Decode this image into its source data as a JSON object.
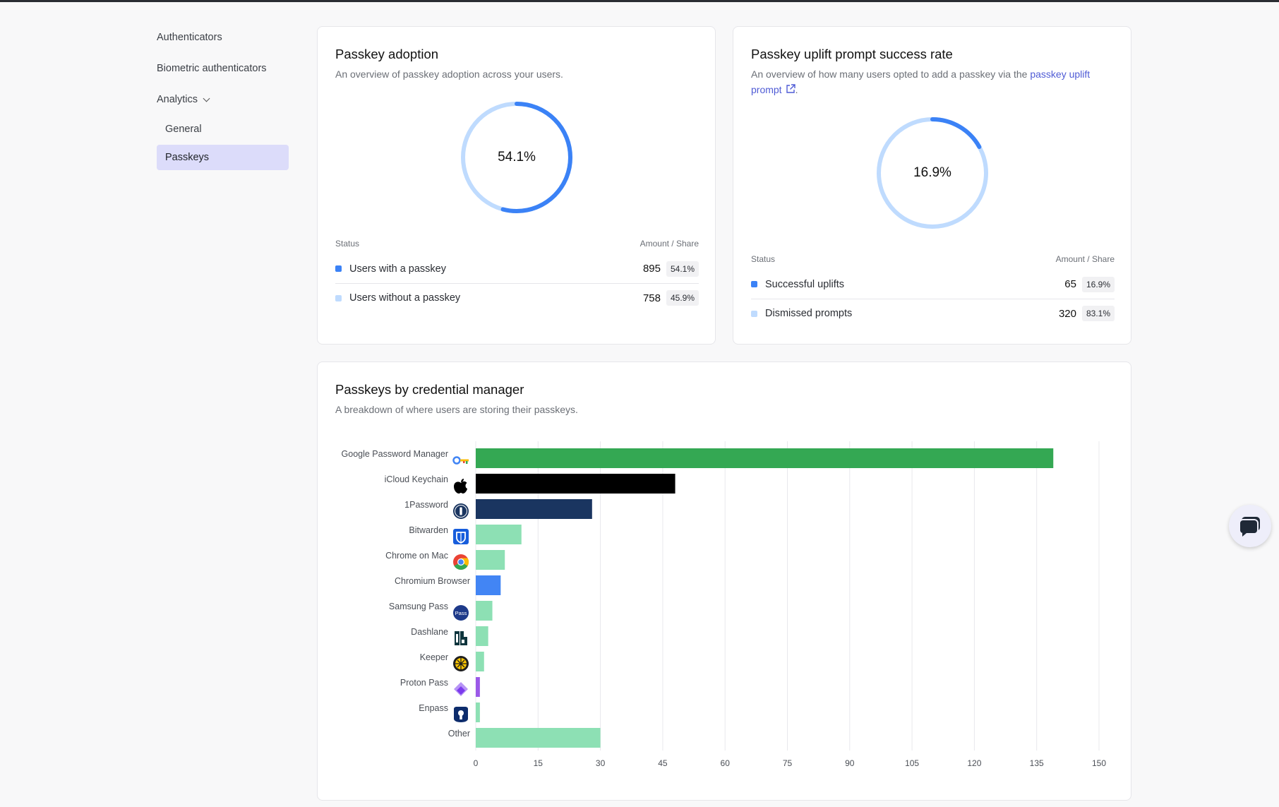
{
  "sidebar": {
    "items": [
      {
        "label": "Authenticators"
      },
      {
        "label": "Biometric authenticators"
      },
      {
        "label": "Analytics"
      }
    ],
    "sub_items": [
      {
        "label": "General"
      },
      {
        "label": "Passkeys"
      }
    ]
  },
  "adoption": {
    "title": "Passkey adoption",
    "subtitle": "An overview of passkey adoption across your users.",
    "percent_label": "54.1%",
    "fraction": 0.541,
    "head_left": "Status",
    "head_right": "Amount / Share",
    "rows": [
      {
        "label": "Users with a passkey",
        "amount": "895",
        "share": "54.1%",
        "color": "#3b82f6"
      },
      {
        "label": "Users without a passkey",
        "amount": "758",
        "share": "45.9%",
        "color": "#bfdbfe"
      }
    ]
  },
  "uplift": {
    "title": "Passkey uplift prompt success rate",
    "subtitle_prefix": "An overview of how many users opted to add a passkey via the",
    "link_text": "passkey uplift prompt",
    "subtitle_suffix": ".",
    "percent_label": "16.9%",
    "fraction": 0.169,
    "head_left": "Status",
    "head_right": "Amount / Share",
    "rows": [
      {
        "label": "Successful uplifts",
        "amount": "65",
        "share": "16.9%",
        "color": "#3b82f6"
      },
      {
        "label": "Dismissed prompts",
        "amount": "320",
        "share": "83.1%",
        "color": "#bfdbfe"
      }
    ]
  },
  "managers": {
    "title": "Passkeys by credential manager",
    "subtitle": "A breakdown of where users are storing their passkeys."
  },
  "chart_data": {
    "type": "bar",
    "orientation": "horizontal",
    "title": "Passkeys by credential manager",
    "categories": [
      "Google Password Manager",
      "iCloud Keychain",
      "1Password",
      "Bitwarden",
      "Chrome on Mac",
      "Chromium Browser",
      "Samsung Pass",
      "Dashlane",
      "Keeper",
      "Proton Pass",
      "Enpass",
      "Other"
    ],
    "values": [
      139,
      48,
      28,
      11,
      7,
      6,
      4,
      3,
      2,
      1,
      1,
      30
    ],
    "colors": [
      "#34a853",
      "#000000",
      "#1a3560",
      "#8de0b4",
      "#8de0b4",
      "#4285f4",
      "#8de0b4",
      "#8de0b4",
      "#8de0b4",
      "#9b59e8",
      "#8de0b4",
      "#8de0b4"
    ],
    "icons": [
      "google-key-icon",
      "apple-icon",
      "onepassword-icon",
      "bitwarden-icon",
      "chrome-icon",
      "",
      "samsung-pass-icon",
      "dashlane-icon",
      "keeper-icon",
      "proton-pass-icon",
      "enpass-icon",
      ""
    ],
    "xlim": [
      0,
      150
    ],
    "xticks": [
      0,
      15,
      30,
      45,
      60,
      75,
      90,
      105,
      120,
      135,
      150
    ],
    "grid": true,
    "legend": "none"
  }
}
